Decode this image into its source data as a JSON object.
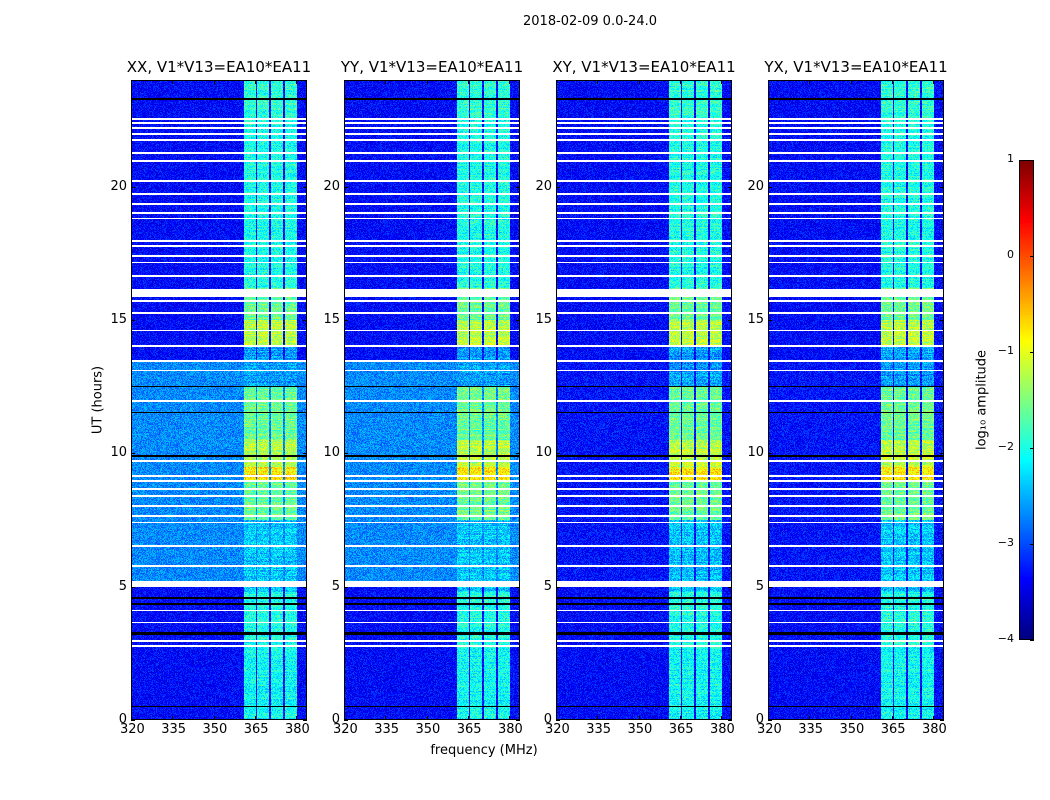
{
  "chart_data": {
    "type": "heatmap",
    "suptitle": "2018-02-09 0.0-24.0",
    "xlabel": "frequency (MHz)",
    "ylabel": "UT (hours)",
    "xlim": [
      320,
      384
    ],
    "ylim": [
      0,
      24
    ],
    "xticks": [
      "320",
      "335",
      "350",
      "365",
      "380"
    ],
    "xtick_values": [
      320,
      335,
      350,
      365,
      380
    ],
    "yticks": [
      "0",
      "5",
      "10",
      "15",
      "20"
    ],
    "ytick_values": [
      0,
      5,
      10,
      15,
      20
    ],
    "panels": [
      {
        "title": "XX, V1*V13=EA10*EA11",
        "bg_raised": -2.7
      },
      {
        "title": "YY, V1*V13=EA10*EA11",
        "bg_raised": -2.7
      },
      {
        "title": "XY, V1*V13=EA10*EA11",
        "bg_raised": -3.3
      },
      {
        "title": "YX, V1*V13=EA10*EA11",
        "bg_raised": -3.3
      }
    ],
    "background_level": -3.35,
    "raised_background_ut": [
      5.2,
      13.5
    ],
    "rfi_subbands_mhz": [
      [
        361,
        365.3
      ],
      [
        366,
        370.3
      ],
      [
        371,
        375.2
      ],
      [
        376,
        380.5
      ]
    ],
    "band_level_by_ut": [
      {
        "ut": [
          0,
          2.7
        ],
        "level": -2.1
      },
      {
        "ut": [
          2.7,
          4.8
        ],
        "level": -2.0
      },
      {
        "ut": [
          4.8,
          7.5
        ],
        "level": -2.4
      },
      {
        "ut": [
          7.5,
          9.0
        ],
        "level": -1.6
      },
      {
        "ut": [
          9.0,
          9.5
        ],
        "level": -0.8
      },
      {
        "ut": [
          9.5,
          10.5
        ],
        "level": -1.2
      },
      {
        "ut": [
          10.5,
          12.5
        ],
        "level": -1.6
      },
      {
        "ut": [
          12.5,
          14.0
        ],
        "level": -2.6
      },
      {
        "ut": [
          14.0,
          15.0
        ],
        "level": -1.2
      },
      {
        "ut": [
          15.0,
          16.2
        ],
        "level": -1.6
      },
      {
        "ut": [
          16.2,
          22.5
        ],
        "level": -2.0
      },
      {
        "ut": [
          22.5,
          24.0
        ],
        "level": -1.9
      }
    ],
    "flagged_ut": [
      [
        2.75,
        2.8
      ],
      [
        2.94,
        2.99
      ],
      [
        3.62,
        3.67
      ],
      [
        4.07,
        4.12
      ],
      [
        4.97,
        5.22
      ],
      [
        5.75,
        5.8
      ],
      [
        6.5,
        6.55
      ],
      [
        7.37,
        7.42
      ],
      [
        7.63,
        7.68
      ],
      [
        8.0,
        8.05
      ],
      [
        8.38,
        8.43
      ],
      [
        8.64,
        8.69
      ],
      [
        8.94,
        8.99
      ],
      [
        9.13,
        9.18
      ],
      [
        9.69,
        9.74
      ],
      [
        11.94,
        11.99
      ],
      [
        13.07,
        13.12
      ],
      [
        13.44,
        13.49
      ],
      [
        14.0,
        14.05
      ],
      [
        14.57,
        14.62
      ],
      [
        15.24,
        15.29
      ],
      [
        15.69,
        15.74
      ],
      [
        15.86,
        16.16
      ],
      [
        16.63,
        16.68
      ],
      [
        17.12,
        17.17
      ],
      [
        17.38,
        17.43
      ],
      [
        17.75,
        17.8
      ],
      [
        17.94,
        17.99
      ],
      [
        18.77,
        18.82
      ],
      [
        18.99,
        19.04
      ],
      [
        19.33,
        19.38
      ],
      [
        19.7,
        19.75
      ],
      [
        20.19,
        20.24
      ],
      [
        20.94,
        20.99
      ],
      [
        21.24,
        21.29
      ],
      [
        21.73,
        21.78
      ],
      [
        21.95,
        22.0
      ],
      [
        22.18,
        22.23
      ],
      [
        22.36,
        22.41
      ],
      [
        22.51,
        22.56
      ]
    ],
    "blank_ut": [
      [
        0.47,
        0.52
      ],
      [
        3.2,
        3.3
      ],
      [
        4.3,
        4.4
      ],
      [
        4.55,
        4.62
      ],
      [
        9.88,
        9.95
      ],
      [
        11.5,
        11.56
      ],
      [
        12.47,
        12.53
      ],
      [
        23.26,
        23.33
      ]
    ],
    "colorbar": {
      "label": "log₁₀ amplitude",
      "ticks": [
        "1",
        "0",
        "−1",
        "−2",
        "−3",
        "−4"
      ],
      "tick_values": [
        1,
        0,
        -1,
        -2,
        -3,
        -4
      ],
      "range": [
        -4,
        1
      ],
      "colormap": "jet"
    }
  }
}
